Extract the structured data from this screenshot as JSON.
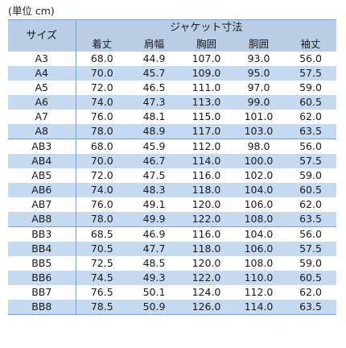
{
  "unit_note": "(単位 cm)",
  "header": {
    "size_label": "サイズ",
    "group_label": "ジャケット寸法",
    "columns": [
      "着丈",
      "肩幅",
      "胸囲",
      "胴囲",
      "袖丈"
    ]
  },
  "rows": [
    [
      "A3",
      "68.0",
      "44.9",
      "107.0",
      "93.0",
      "56.0"
    ],
    [
      "A4",
      "70.0",
      "45.7",
      "109.0",
      "95.0",
      "57.5"
    ],
    [
      "A5",
      "72.0",
      "46.5",
      "111.0",
      "97.0",
      "59.0"
    ],
    [
      "A6",
      "74.0",
      "47.3",
      "113.0",
      "99.0",
      "60.5"
    ],
    [
      "A7",
      "76.0",
      "48.1",
      "115.0",
      "101.0",
      "62.0"
    ],
    [
      "A8",
      "78.0",
      "48.9",
      "117.0",
      "103.0",
      "63.5"
    ],
    [
      "AB3",
      "68.0",
      "45.9",
      "112.0",
      "98.0",
      "56.0"
    ],
    [
      "AB4",
      "70.0",
      "46.7",
      "114.0",
      "100.0",
      "57.5"
    ],
    [
      "AB5",
      "72.0",
      "47.5",
      "116.0",
      "102.0",
      "59.0"
    ],
    [
      "AB6",
      "74.0",
      "48.3",
      "118.0",
      "104.0",
      "60.5"
    ],
    [
      "AB7",
      "76.0",
      "49.1",
      "120.0",
      "106.0",
      "62.0"
    ],
    [
      "AB8",
      "78.0",
      "49.9",
      "122.0",
      "108.0",
      "63.5"
    ],
    [
      "BB3",
      "68.5",
      "46.9",
      "116.0",
      "104.0",
      "56.0"
    ],
    [
      "BB4",
      "70.5",
      "47.7",
      "118.0",
      "106.0",
      "57.5"
    ],
    [
      "BB5",
      "72.5",
      "48.5",
      "120.0",
      "108.0",
      "59.0"
    ],
    [
      "BB6",
      "74.5",
      "49.3",
      "122.0",
      "110.0",
      "60.5"
    ],
    [
      "BB7",
      "76.5",
      "50.1",
      "124.0",
      "112.0",
      "62.0"
    ],
    [
      "BB8",
      "78.5",
      "50.9",
      "126.0",
      "114.0",
      "63.5"
    ]
  ],
  "colors": {
    "header_bg": "#b9cde5",
    "stripe_bg": "#c5d9f1",
    "border": "#7f9fc7"
  }
}
